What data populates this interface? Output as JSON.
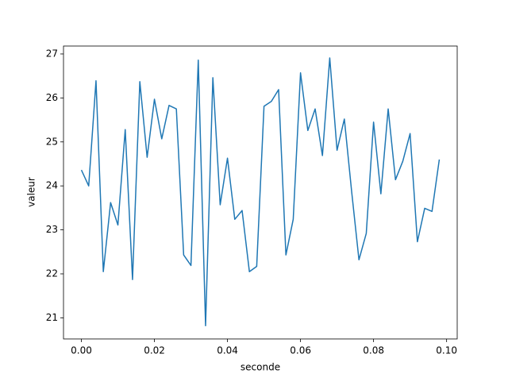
{
  "chart_data": {
    "type": "line",
    "x_label": "seconde",
    "y_label": "valeur",
    "x": [
      0,
      0.002,
      0.004,
      0.006,
      0.008,
      0.01,
      0.012,
      0.014,
      0.016,
      0.018,
      0.02,
      0.022,
      0.024,
      0.026,
      0.028,
      0.03,
      0.032,
      0.034,
      0.036,
      0.038,
      0.04,
      0.042,
      0.044,
      0.046,
      0.048,
      0.05,
      0.052,
      0.054,
      0.056,
      0.058,
      0.06,
      0.062,
      0.064,
      0.066,
      0.068,
      0.07,
      0.072,
      0.074,
      0.076,
      0.078,
      0.08,
      0.082,
      0.084,
      0.086,
      0.088,
      0.09,
      0.092,
      0.094,
      0.096,
      0.098
    ],
    "series": [
      {
        "color": "#1f77b4",
        "values": [
          24.36,
          24.0,
          26.39,
          22.05,
          23.62,
          23.11,
          25.28,
          21.87,
          26.37,
          24.65,
          25.97,
          25.07,
          25.83,
          25.75,
          22.43,
          22.19,
          26.86,
          20.82,
          26.46,
          23.57,
          24.63,
          23.24,
          23.44,
          22.05,
          22.17,
          25.81,
          25.92,
          26.19,
          22.43,
          23.24,
          26.57,
          25.26,
          25.75,
          24.69,
          26.91,
          24.81,
          25.52,
          23.87,
          22.32,
          22.92,
          25.45,
          23.82,
          25.75,
          24.14,
          24.56,
          25.19,
          22.73,
          23.49,
          23.42,
          24.6
        ]
      }
    ],
    "xlim": [
      -0.0049,
      0.1029
    ],
    "ylim": [
      20.52,
      27.18
    ],
    "xticks": [
      {
        "value": 0,
        "label": "0.00"
      },
      {
        "value": 0.02,
        "label": "0.02"
      },
      {
        "value": 0.04,
        "label": "0.04"
      },
      {
        "value": 0.06,
        "label": "0.06"
      },
      {
        "value": 0.08,
        "label": "0.08"
      },
      {
        "value": 0.1,
        "label": "0.10"
      }
    ],
    "yticks": [
      21,
      22,
      23,
      24,
      25,
      26,
      27
    ]
  }
}
